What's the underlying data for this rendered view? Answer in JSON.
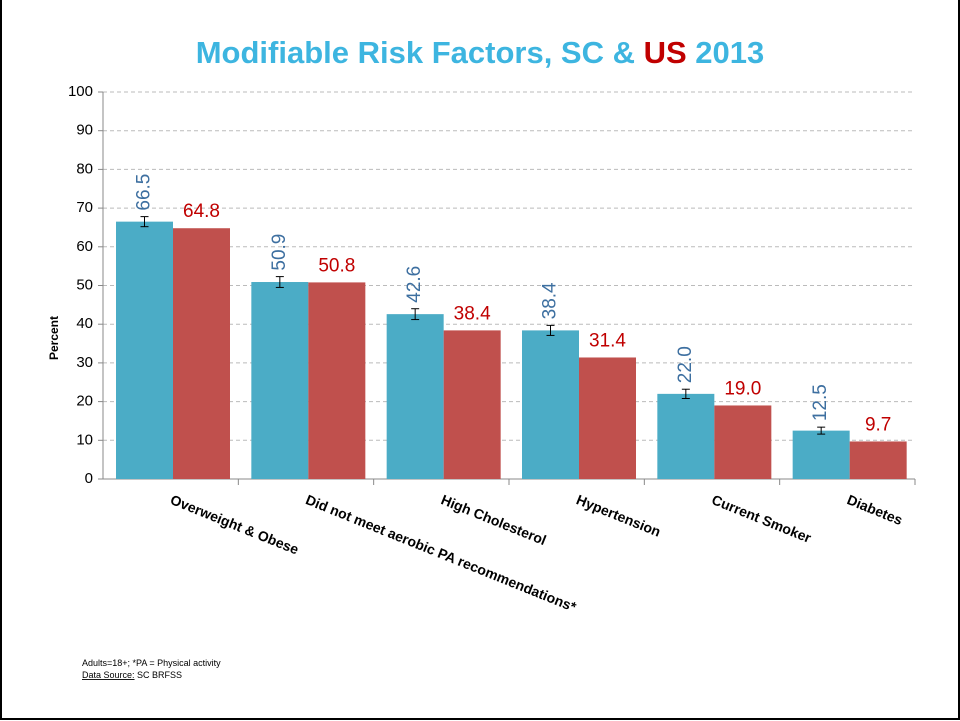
{
  "chart_data": {
    "type": "bar",
    "title_parts": [
      {
        "text": "Modifiable Risk Factors, SC & ",
        "color": "#3db5e0"
      },
      {
        "text": "US",
        "color": "#c00000"
      },
      {
        "text": " 2013",
        "color": "#3db5e0"
      }
    ],
    "ylabel": "Percent",
    "categories": [
      "Overweight & Obese",
      "Did not meet aerobic PA recommendations*",
      "High Cholesterol",
      "Hypertension",
      "Current Smoker",
      "Diabetes"
    ],
    "series": [
      {
        "color": "#4bacc6",
        "label_color": "#3d6fa0",
        "values": [
          66.5,
          50.9,
          42.6,
          38.4,
          22.0,
          12.5
        ],
        "value_labels": [
          "66.5",
          "50.9",
          "42.6",
          "38.4",
          "22.0",
          "12.5"
        ],
        "errors": [
          1.3,
          1.4,
          1.4,
          1.3,
          1.2,
          0.9
        ],
        "label_rotation": -90
      },
      {
        "color": "#c0504d",
        "label_color": "#c00000",
        "values": [
          64.8,
          50.8,
          38.4,
          31.4,
          19.0,
          9.7
        ],
        "value_labels": [
          "64.8",
          "50.8",
          "38.4",
          "31.4",
          "19.0",
          "9.7"
        ],
        "label_rotation": 0
      }
    ],
    "ylim": [
      0,
      100
    ],
    "yticks": [
      0,
      10,
      20,
      30,
      40,
      50,
      60,
      70,
      80,
      90,
      100
    ],
    "grid": true,
    "footnotes": [
      [
        {
          "text": "Adults=18+; *PA = Physical activity",
          "underline": false
        }
      ],
      [
        {
          "text": "Data Source:",
          "underline": true
        },
        {
          "text": " SC BRFSS",
          "underline": false
        }
      ]
    ]
  }
}
